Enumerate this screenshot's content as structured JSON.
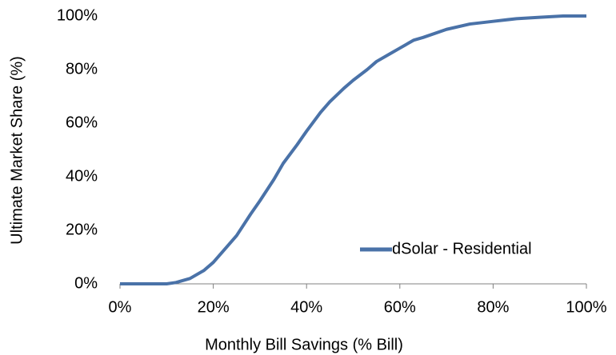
{
  "chart_data": {
    "type": "line",
    "x_label": "Monthly Bill Savings (% Bill)",
    "y_label": "Ultimate Market Share (%)",
    "x": [
      0,
      5,
      10,
      12,
      15,
      18,
      20,
      22,
      25,
      28,
      30,
      33,
      35,
      38,
      40,
      43,
      45,
      48,
      50,
      53,
      55,
      58,
      60,
      63,
      65,
      70,
      75,
      80,
      85,
      90,
      95,
      100
    ],
    "series": [
      {
        "name": "dSolar - Residential",
        "color": "#4a72a8",
        "values": [
          0,
          0,
          0,
          0.5,
          2,
          5,
          8,
          12,
          18,
          26,
          31,
          39,
          45,
          52,
          57,
          64,
          68,
          73,
          76,
          80,
          83,
          86,
          88,
          91,
          92,
          95,
          97,
          98,
          99,
          99.5,
          100,
          100
        ]
      }
    ],
    "xlim": [
      0,
      100
    ],
    "ylim": [
      0,
      100
    ],
    "xticks": [
      {
        "value": 0,
        "label": "0%"
      },
      {
        "value": 20,
        "label": "20%"
      },
      {
        "value": 40,
        "label": "40%"
      },
      {
        "value": 60,
        "label": "60%"
      },
      {
        "value": 80,
        "label": "80%"
      },
      {
        "value": 100,
        "label": "100%"
      }
    ],
    "yticks": [
      {
        "value": 0,
        "label": "0%"
      },
      {
        "value": 20,
        "label": "20%"
      },
      {
        "value": 40,
        "label": "40%"
      },
      {
        "value": 60,
        "label": "60%"
      },
      {
        "value": 80,
        "label": "80%"
      },
      {
        "value": 100,
        "label": "100%"
      }
    ],
    "legend": "lower right"
  }
}
